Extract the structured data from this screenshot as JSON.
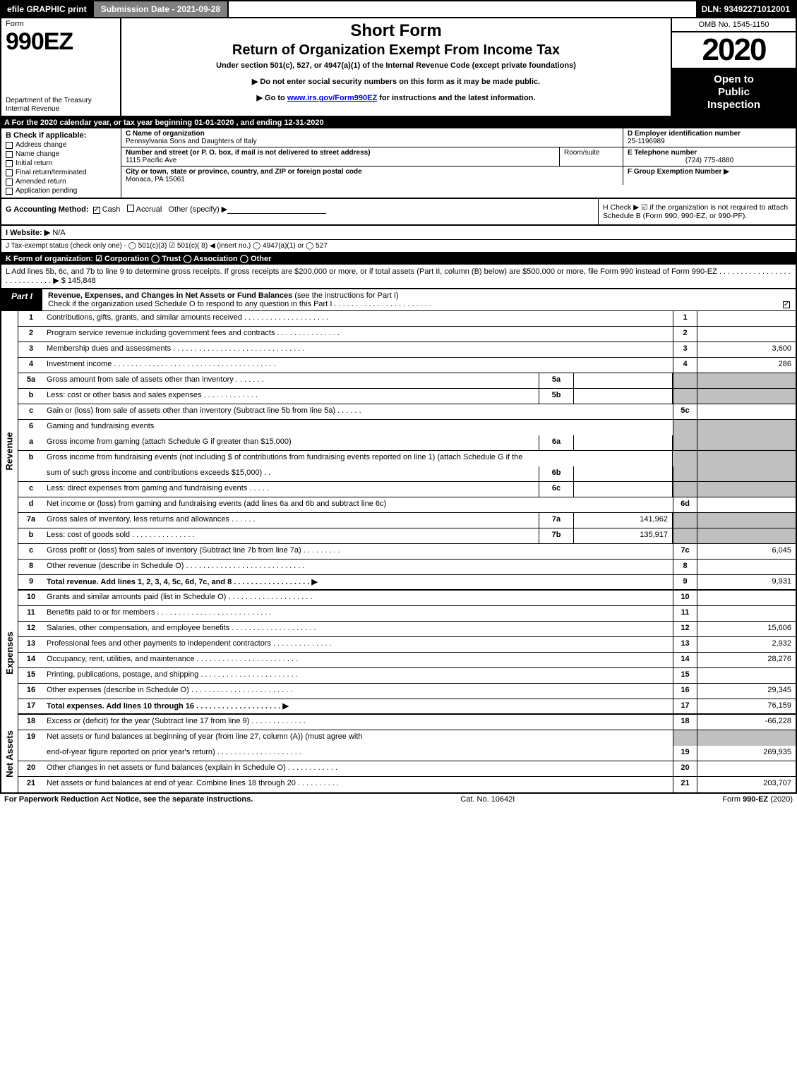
{
  "topbar": {
    "efile_label": "efile GRAPHIC print",
    "submission_label": "Submission Date - 2021-09-28",
    "dln_label": "DLN: 93492271012001"
  },
  "header": {
    "form_word": "Form",
    "form_num": "990EZ",
    "dept_line1": "Department of the Treasury",
    "dept_line2": "Internal Revenue",
    "short_form": "Short Form",
    "main_title": "Return of Organization Exempt From Income Tax",
    "subtitle": "Under section 501(c), 527, or 4947(a)(1) of the Internal Revenue Code (except private foundations)",
    "notice1": "▶ Do not enter social security numbers on this form as it may be made public.",
    "notice2_pre": "▶ Go to ",
    "notice2_link": "www.irs.gov/Form990EZ",
    "notice2_post": " for instructions and the latest information.",
    "omb": "OMB No. 1545-1150",
    "year": "2020",
    "open1": "Open to",
    "open2": "Public",
    "open3": "Inspection"
  },
  "line_a": "A For the 2020 calendar year, or tax year beginning 01-01-2020 , and ending 12-31-2020",
  "box_b": {
    "label": "B  Check if applicable:",
    "items": [
      "Address change",
      "Name change",
      "Initial return",
      "Final return/terminated",
      "Amended return",
      "Application pending"
    ]
  },
  "box_c": {
    "name_label": "C Name of organization",
    "name_value": "Pennsylvania Sons and Daughters of Italy",
    "street_label": "Number and street (or P. O. box, if mail is not delivered to street address)",
    "street_value": "1115 Pacific Ave",
    "room_label": "Room/suite",
    "city_label": "City or town, state or province, country, and ZIP or foreign postal code",
    "city_value": "Monaca, PA  15061"
  },
  "box_d": {
    "label": "D Employer identification number",
    "value": "25-1196989"
  },
  "box_e": {
    "label": "E Telephone number",
    "value": "(724) 775-4880"
  },
  "box_f": {
    "label": "F Group Exemption Number  ▶"
  },
  "line_g_label": "G Accounting Method:",
  "line_g_cash": "Cash",
  "line_g_accrual": "Accrual",
  "line_g_other": "Other (specify) ▶",
  "line_h_text": "H  Check ▶  ☑  if the organization is not required to attach Schedule B (Form 990, 990-EZ, or 990-PF).",
  "website_label": "I Website: ▶",
  "website_value": "N/A",
  "line_j": "J Tax-exempt status (check only one) -  ◯ 501(c)(3)  ☑ 501(c)( 8) ◀ (insert no.)  ◯ 4947(a)(1) or  ◯ 527",
  "line_k": "K Form of organization:   ☑ Corporation   ◯ Trust   ◯ Association   ◯ Other",
  "line_l_text": "L Add lines 5b, 6c, and 7b to line 9 to determine gross receipts. If gross receipts are $200,000 or more, or if total assets (Part II, column (B) below) are $500,000 or more, file Form 990 instead of Form 990-EZ  . . . . . . . . . . . . . . . . . . . . . . . . . . . .  ▶ $ ",
  "line_l_value": "145,848",
  "part1": {
    "tab": "Part I",
    "title_bold": "Revenue, Expenses, and Changes in Net Assets or Fund Balances",
    "title_rest": " (see the instructions for Part I)",
    "subtitle": "Check if the organization used Schedule O to respond to any question in this Part I . . . . . . . . . . . . . . . . . . . . . . .",
    "checkbox_checked": true
  },
  "revenue_label": "Revenue",
  "expenses_label": "Expenses",
  "netassets_label": "Net Assets",
  "rows": {
    "r1": {
      "num": "1",
      "desc": "Contributions, gifts, grants, and similar amounts received . . . . . . . . . . . . . . . . . . . .",
      "ln": "1",
      "amt": ""
    },
    "r2": {
      "num": "2",
      "desc": "Program service revenue including government fees and contracts . . . . . . . . . . . . . . .",
      "ln": "2",
      "amt": ""
    },
    "r3": {
      "num": "3",
      "desc": "Membership dues and assessments . . . . . . . . . . . . . . . . . . . . . . . . . . . . . . .",
      "ln": "3",
      "amt": "3,600"
    },
    "r4": {
      "num": "4",
      "desc": "Investment income . . . . . . . . . . . . . . . . . . . . . . . . . . . . . . . . . . . . . .",
      "ln": "4",
      "amt": "286"
    },
    "r5a": {
      "num": "5a",
      "desc": "Gross amount from sale of assets other than inventory . . . . . . .",
      "sub": "5a",
      "subval": ""
    },
    "r5b": {
      "num": "b",
      "desc": "Less: cost or other basis and sales expenses . . . . . . . . . . . . .",
      "sub": "5b",
      "subval": ""
    },
    "r5c": {
      "num": "c",
      "desc": "Gain or (loss) from sale of assets other than inventory (Subtract line 5b from line 5a) . . . . . .",
      "ln": "5c",
      "amt": ""
    },
    "r6": {
      "num": "6",
      "desc": "Gaming and fundraising events"
    },
    "r6a": {
      "num": "a",
      "desc": "Gross income from gaming (attach Schedule G if greater than $15,000)",
      "sub": "6a",
      "subval": ""
    },
    "r6b1": {
      "num": "b",
      "desc": "Gross income from fundraising events (not including $                     of contributions from fundraising events reported on line 1) (attach Schedule G if the"
    },
    "r6b2": {
      "num": "",
      "desc": "sum of such gross income and contributions exceeds $15,000)   .   .",
      "sub": "6b",
      "subval": ""
    },
    "r6c": {
      "num": "c",
      "desc": "Less: direct expenses from gaming and fundraising events  . . . . .",
      "sub": "6c",
      "subval": ""
    },
    "r6d": {
      "num": "d",
      "desc": "Net income or (loss) from gaming and fundraising events (add lines 6a and 6b and subtract line 6c)",
      "ln": "6d",
      "amt": ""
    },
    "r7a": {
      "num": "7a",
      "desc": "Gross sales of inventory, less returns and allowances . . . . . .",
      "sub": "7a",
      "subval": "141,962"
    },
    "r7b": {
      "num": "b",
      "desc": "Less: cost of goods sold          . . . . . . . . . . . . . . .",
      "sub": "7b",
      "subval": "135,917"
    },
    "r7c": {
      "num": "c",
      "desc": "Gross profit or (loss) from sales of inventory (Subtract line 7b from line 7a) . . . . . . . . .",
      "ln": "7c",
      "amt": "6,045"
    },
    "r8": {
      "num": "8",
      "desc": "Other revenue (describe in Schedule O) . . . . . . . . . . . . . . . . . . . . . . . . . . . .",
      "ln": "8",
      "amt": ""
    },
    "r9": {
      "num": "9",
      "desc": "Total revenue. Add lines 1, 2, 3, 4, 5c, 6d, 7c, and 8  . . . . . . . . . . . . . . . . . .    ▶",
      "ln": "9",
      "amt": "9,931"
    },
    "r10": {
      "num": "10",
      "desc": "Grants and similar amounts paid (list in Schedule O) . . . . . . . . . . . . . . . . . . . .",
      "ln": "10",
      "amt": ""
    },
    "r11": {
      "num": "11",
      "desc": "Benefits paid to or for members       . . . . . . . . . . . . . . . . . . . . . . . . . . .",
      "ln": "11",
      "amt": ""
    },
    "r12": {
      "num": "12",
      "desc": "Salaries, other compensation, and employee benefits . . . . . . . . . . . . . . . . . . . .",
      "ln": "12",
      "amt": "15,606"
    },
    "r13": {
      "num": "13",
      "desc": "Professional fees and other payments to independent contractors . . . . . . . . . . . . . .",
      "ln": "13",
      "amt": "2,932"
    },
    "r14": {
      "num": "14",
      "desc": "Occupancy, rent, utilities, and maintenance . . . . . . . . . . . . . . . . . . . . . . . .",
      "ln": "14",
      "amt": "28,276"
    },
    "r15": {
      "num": "15",
      "desc": "Printing, publications, postage, and shipping . . . . . . . . . . . . . . . . . . . . . . .",
      "ln": "15",
      "amt": ""
    },
    "r16": {
      "num": "16",
      "desc": "Other expenses (describe in Schedule O)    . . . . . . . . . . . . . . . . . . . . . . . .",
      "ln": "16",
      "amt": "29,345"
    },
    "r17": {
      "num": "17",
      "desc": "Total expenses. Add lines 10 through 16      . . . . . . . . . . . . . . . . . . . .    ▶",
      "ln": "17",
      "amt": "76,159"
    },
    "r18": {
      "num": "18",
      "desc": "Excess or (deficit) for the year (Subtract line 17 from line 9)        . . . . . . . . . . . . .",
      "ln": "18",
      "amt": "-66,228"
    },
    "r19a": {
      "num": "19",
      "desc": "Net assets or fund balances at beginning of year (from line 27, column (A)) (must agree with"
    },
    "r19b": {
      "num": "",
      "desc": "end-of-year figure reported on prior year's return) . . . . . . . . . . . . . . . . . . . .",
      "ln": "19",
      "amt": "269,935"
    },
    "r20": {
      "num": "20",
      "desc": "Other changes in net assets or fund balances (explain in Schedule O) . . . . . . . . . . . .",
      "ln": "20",
      "amt": ""
    },
    "r21": {
      "num": "21",
      "desc": "Net assets or fund balances at end of year. Combine lines 18 through 20 . . . . . . . . . .",
      "ln": "21",
      "amt": "203,707"
    }
  },
  "footer": {
    "left": "For Paperwork Reduction Act Notice, see the separate instructions.",
    "mid": "Cat. No. 10642I",
    "right_pre": "Form ",
    "right_bold": "990-EZ",
    "right_post": " (2020)"
  },
  "colors": {
    "black": "#000000",
    "white": "#ffffff",
    "gray_btn": "#808080",
    "shaded_cell": "#c0c0c0",
    "link": "#0000ee"
  }
}
